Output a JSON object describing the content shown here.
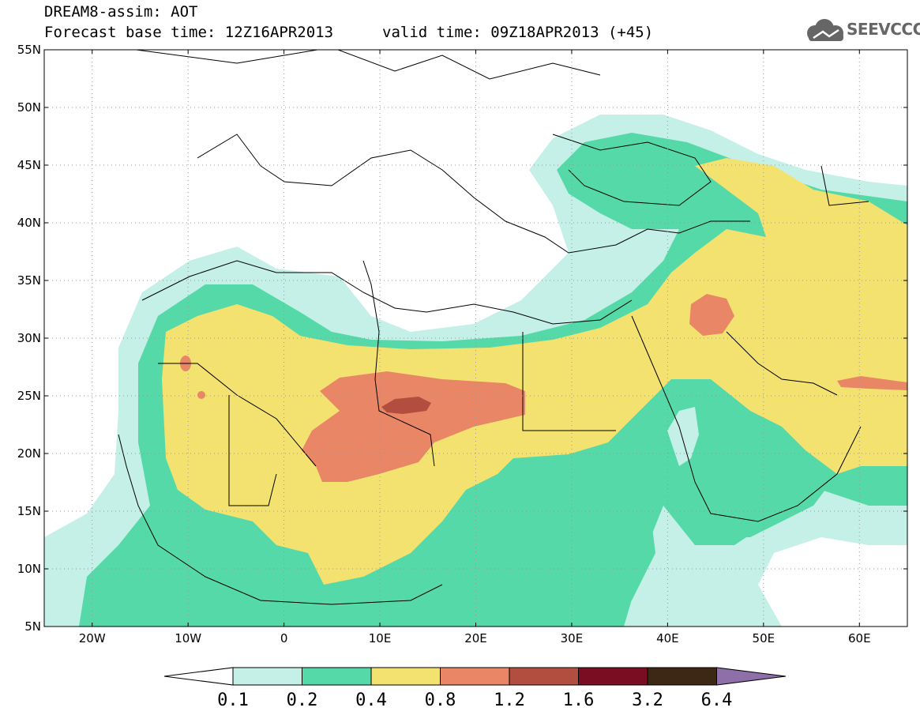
{
  "header": {
    "model_line": "DREAM8-assim: AOT",
    "base_time_line": "Forecast base time: 12Z16APR2013",
    "valid_time_line": "valid time: 09Z18APR2013 (+45)"
  },
  "logo": {
    "text": "SEEVCCC",
    "icon": "cloud-icon"
  },
  "map": {
    "variable": "AOT",
    "region": {
      "lon": [
        -25,
        65
      ],
      "lat": [
        5,
        55
      ]
    },
    "grid": "dotted",
    "lat_ticks": [
      "55N",
      "50N",
      "45N",
      "40N",
      "35N",
      "30N",
      "25N",
      "20N",
      "15N",
      "10N",
      "5N"
    ],
    "lon_ticks": [
      "20W",
      "10W",
      "0",
      "10E",
      "20E",
      "30E",
      "40E",
      "50E",
      "60E"
    ]
  },
  "colorbar": {
    "levels": [
      "0.1",
      "0.2",
      "0.4",
      "0.8",
      "1.2",
      "1.6",
      "3.2",
      "6.4"
    ],
    "colors": [
      "#ffffff",
      "#c4f0e8",
      "#55d9a8",
      "#f4e270",
      "#e88665",
      "#b14e40",
      "#7b0d22",
      "#3d2715",
      "#8e6fa7"
    ]
  }
}
